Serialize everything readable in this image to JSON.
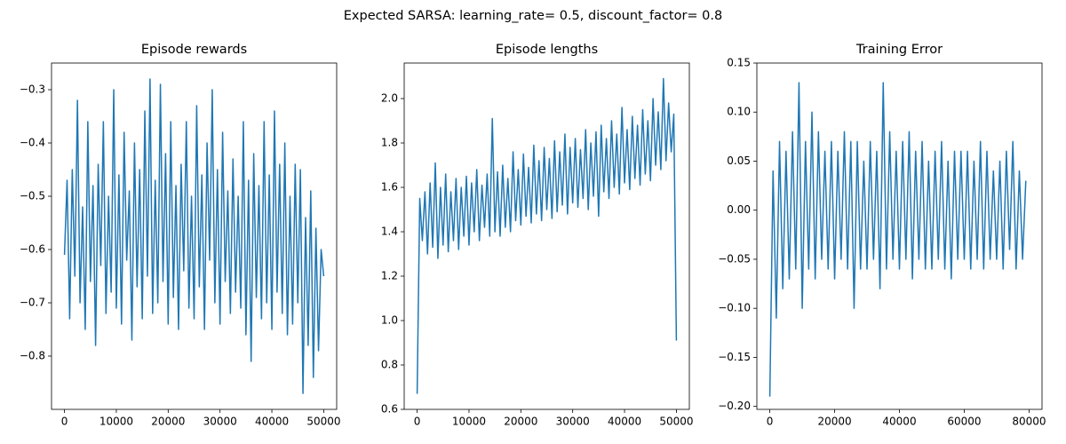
{
  "title": "Expected SARSA: learning_rate= 0.5, discount_factor= 0.8",
  "chart_data": [
    {
      "type": "line",
      "title": "Episode rewards",
      "color": "#1f77b4",
      "x": [
        0,
        500,
        1000,
        1500,
        2000,
        2500,
        3000,
        3500,
        4000,
        4500,
        5000,
        5500,
        6000,
        6500,
        7000,
        7500,
        8000,
        8500,
        9000,
        9500,
        10000,
        10500,
        11000,
        11500,
        12000,
        12500,
        13000,
        13500,
        14000,
        14500,
        15000,
        15500,
        16000,
        16500,
        17000,
        17500,
        18000,
        18500,
        19000,
        19500,
        20000,
        20500,
        21000,
        21500,
        22000,
        22500,
        23000,
        23500,
        24000,
        24500,
        25000,
        25500,
        26000,
        26500,
        27000,
        27500,
        28000,
        28500,
        29000,
        29500,
        30000,
        30500,
        31000,
        31500,
        32000,
        32500,
        33000,
        33500,
        34000,
        34500,
        35000,
        35500,
        36000,
        36500,
        37000,
        37500,
        38000,
        38500,
        39000,
        39500,
        40000,
        40500,
        41000,
        41500,
        42000,
        42500,
        43000,
        43500,
        44000,
        44500,
        45000,
        45500,
        46000,
        46500,
        47000,
        47500,
        48000,
        48500,
        49000,
        49500,
        50000
      ],
      "values": [
        -0.61,
        -0.47,
        -0.73,
        -0.45,
        -0.65,
        -0.32,
        -0.7,
        -0.52,
        -0.75,
        -0.36,
        -0.66,
        -0.48,
        -0.78,
        -0.44,
        -0.63,
        -0.36,
        -0.72,
        -0.5,
        -0.68,
        -0.3,
        -0.71,
        -0.46,
        -0.74,
        -0.38,
        -0.62,
        -0.49,
        -0.77,
        -0.4,
        -0.67,
        -0.45,
        -0.73,
        -0.34,
        -0.65,
        -0.28,
        -0.72,
        -0.47,
        -0.7,
        -0.29,
        -0.66,
        -0.42,
        -0.74,
        -0.36,
        -0.69,
        -0.48,
        -0.75,
        -0.44,
        -0.64,
        -0.36,
        -0.71,
        -0.5,
        -0.73,
        -0.33,
        -0.67,
        -0.46,
        -0.75,
        -0.4,
        -0.62,
        -0.3,
        -0.7,
        -0.45,
        -0.74,
        -0.38,
        -0.66,
        -0.49,
        -0.72,
        -0.43,
        -0.68,
        -0.5,
        -0.71,
        -0.36,
        -0.76,
        -0.47,
        -0.81,
        -0.42,
        -0.69,
        -0.48,
        -0.73,
        -0.36,
        -0.7,
        -0.46,
        -0.75,
        -0.34,
        -0.68,
        -0.44,
        -0.72,
        -0.4,
        -0.76,
        -0.5,
        -0.74,
        -0.44,
        -0.7,
        -0.45,
        -0.87,
        -0.54,
        -0.78,
        -0.49,
        -0.84,
        -0.56,
        -0.79,
        -0.6,
        -0.65
      ],
      "xlim": [
        -2500,
        52500
      ],
      "xticks": [
        0,
        10000,
        20000,
        30000,
        40000,
        50000
      ],
      "ylim": [
        -0.9,
        -0.25
      ],
      "yticks": [
        {
          "value": -0.8,
          "label": "−0.8"
        },
        {
          "value": -0.7,
          "label": "−0.7"
        },
        {
          "value": -0.6,
          "label": "−0.6"
        },
        {
          "value": -0.5,
          "label": "−0.5"
        },
        {
          "value": -0.4,
          "label": "−0.4"
        },
        {
          "value": -0.3,
          "label": "−0.3"
        }
      ]
    },
    {
      "type": "line",
      "title": "Episode lengths",
      "color": "#1f77b4",
      "x": [
        0,
        500,
        1000,
        1500,
        2000,
        2500,
        3000,
        3500,
        4000,
        4500,
        5000,
        5500,
        6000,
        6500,
        7000,
        7500,
        8000,
        8500,
        9000,
        9500,
        10000,
        10500,
        11000,
        11500,
        12000,
        12500,
        13000,
        13500,
        14000,
        14500,
        15000,
        15500,
        16000,
        16500,
        17000,
        17500,
        18000,
        18500,
        19000,
        19500,
        20000,
        20500,
        21000,
        21500,
        22000,
        22500,
        23000,
        23500,
        24000,
        24500,
        25000,
        25500,
        26000,
        26500,
        27000,
        27500,
        28000,
        28500,
        29000,
        29500,
        30000,
        30500,
        31000,
        31500,
        32000,
        32500,
        33000,
        33500,
        34000,
        34500,
        35000,
        35500,
        36000,
        36500,
        37000,
        37500,
        38000,
        38500,
        39000,
        39500,
        40000,
        40500,
        41000,
        41500,
        42000,
        42500,
        43000,
        43500,
        44000,
        44500,
        45000,
        45500,
        46000,
        46500,
        47000,
        47500,
        48000,
        48500,
        49000,
        49500,
        50000
      ],
      "values": [
        0.67,
        1.55,
        1.36,
        1.58,
        1.3,
        1.62,
        1.33,
        1.71,
        1.28,
        1.6,
        1.34,
        1.66,
        1.31,
        1.58,
        1.36,
        1.64,
        1.32,
        1.6,
        1.38,
        1.65,
        1.34,
        1.62,
        1.4,
        1.68,
        1.36,
        1.61,
        1.42,
        1.66,
        1.38,
        1.91,
        1.4,
        1.67,
        1.38,
        1.7,
        1.42,
        1.64,
        1.4,
        1.76,
        1.45,
        1.68,
        1.43,
        1.75,
        1.47,
        1.69,
        1.44,
        1.79,
        1.48,
        1.72,
        1.45,
        1.78,
        1.5,
        1.73,
        1.46,
        1.81,
        1.49,
        1.76,
        1.52,
        1.84,
        1.48,
        1.78,
        1.53,
        1.82,
        1.51,
        1.77,
        1.55,
        1.86,
        1.5,
        1.8,
        1.56,
        1.85,
        1.47,
        1.88,
        1.58,
        1.82,
        1.55,
        1.9,
        1.6,
        1.84,
        1.57,
        1.96,
        1.62,
        1.86,
        1.59,
        1.92,
        1.64,
        1.88,
        1.61,
        1.95,
        1.66,
        1.9,
        1.63,
        2.0,
        1.7,
        1.94,
        1.68,
        2.09,
        1.72,
        1.98,
        1.76,
        1.93,
        0.91
      ],
      "xlim": [
        -2500,
        52500
      ],
      "xticks": [
        0,
        10000,
        20000,
        30000,
        40000,
        50000
      ],
      "ylim": [
        0.6,
        2.16
      ],
      "yticks": [
        0.6,
        0.8,
        {
          "value": 1.0,
          "label": "1.0"
        },
        1.2,
        1.4,
        1.6,
        1.8,
        {
          "value": 2.0,
          "label": "2.0"
        }
      ]
    },
    {
      "type": "line",
      "title": "Training Error",
      "color": "#1f77b4",
      "x": [
        0,
        1000,
        2000,
        3000,
        4000,
        5000,
        6000,
        7000,
        8000,
        9000,
        10000,
        11000,
        12000,
        13000,
        14000,
        15000,
        16000,
        17000,
        18000,
        19000,
        20000,
        21000,
        22000,
        23000,
        24000,
        25000,
        26000,
        27000,
        28000,
        29000,
        30000,
        31000,
        32000,
        33000,
        34000,
        35000,
        36000,
        37000,
        38000,
        39000,
        40000,
        41000,
        42000,
        43000,
        44000,
        45000,
        46000,
        47000,
        48000,
        49000,
        50000,
        51000,
        52000,
        53000,
        54000,
        55000,
        56000,
        57000,
        58000,
        59000,
        60000,
        61000,
        62000,
        63000,
        64000,
        65000,
        66000,
        67000,
        68000,
        69000,
        70000,
        71000,
        72000,
        73000,
        74000,
        75000,
        76000,
        77000,
        78000,
        79000
      ],
      "values": [
        -0.19,
        0.04,
        -0.11,
        0.07,
        -0.08,
        0.06,
        -0.07,
        0.08,
        -0.06,
        0.13,
        -0.1,
        0.07,
        -0.06,
        0.1,
        -0.07,
        0.08,
        -0.05,
        0.06,
        -0.06,
        0.07,
        -0.07,
        0.06,
        -0.05,
        0.08,
        -0.06,
        0.07,
        -0.1,
        0.07,
        -0.06,
        0.05,
        -0.06,
        0.07,
        -0.05,
        0.06,
        -0.08,
        0.13,
        -0.06,
        0.08,
        -0.05,
        0.06,
        -0.06,
        0.07,
        -0.05,
        0.08,
        -0.07,
        0.06,
        -0.05,
        0.07,
        -0.06,
        0.05,
        -0.06,
        0.06,
        -0.05,
        0.07,
        -0.06,
        0.05,
        -0.07,
        0.06,
        -0.05,
        0.06,
        -0.05,
        0.06,
        -0.06,
        0.05,
        -0.05,
        0.07,
        -0.06,
        0.06,
        -0.05,
        0.04,
        -0.05,
        0.05,
        -0.06,
        0.06,
        -0.04,
        0.07,
        -0.06,
        0.04,
        -0.05,
        0.03
      ],
      "xlim": [
        -4000,
        84000
      ],
      "xticks": [
        0,
        20000,
        40000,
        60000,
        80000
      ],
      "ylim": [
        -0.203,
        0.15
      ],
      "yticks": [
        {
          "value": -0.2,
          "label": "−0.20"
        },
        {
          "value": -0.15,
          "label": "−0.15"
        },
        {
          "value": -0.1,
          "label": "−0.10"
        },
        {
          "value": -0.05,
          "label": "−0.05"
        },
        {
          "value": 0,
          "label": "0.00"
        },
        0.05,
        {
          "value": 0.1,
          "label": "0.10"
        },
        0.15
      ]
    }
  ]
}
